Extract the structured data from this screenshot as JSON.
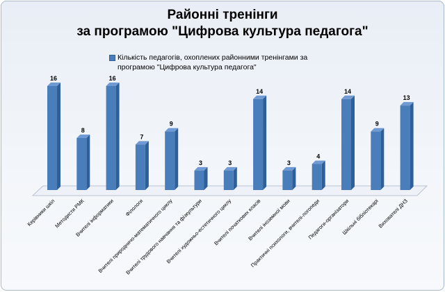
{
  "chart_data": {
    "type": "bar",
    "title_lines": [
      "Районні тренінги",
      "за програмою \"Цифрова культура педагога\""
    ],
    "legend": "Кількість педагогів, охоплених районними тренінгами за програмою \"Цифрова культура педагога\"",
    "series": [
      {
        "name": "Кількість педагогів, охоплених районними тренінгами за програмою \"Цифрова культура педагога\"",
        "values": [
          16,
          8,
          16,
          7,
          9,
          3,
          3,
          14,
          3,
          4,
          14,
          9,
          13
        ]
      }
    ],
    "categories": [
      "Керівники шкіл",
      "Методисти РМК",
      "Вчителі інформатики",
      "Філологи",
      "Вчителі природничо-математичного циклу",
      "Вчителі трудового навчання та фізкультури",
      "Вчителі художньо-естетичного циклу",
      "Вчителі початкових класів",
      "Вчителі іноземної мови",
      "Практичні психологи, вчителі-логопеди",
      "Педагоги-організатори",
      "Шкільні бібліотекарі",
      "Вихователі ДНЗ"
    ],
    "ylim": [
      0,
      16
    ],
    "grid": false,
    "legend_position": "top",
    "colors": {
      "bar_front": "#4a7ebb",
      "bar_side": "#2f5f98",
      "bar_top": "#6f9ad4"
    }
  }
}
